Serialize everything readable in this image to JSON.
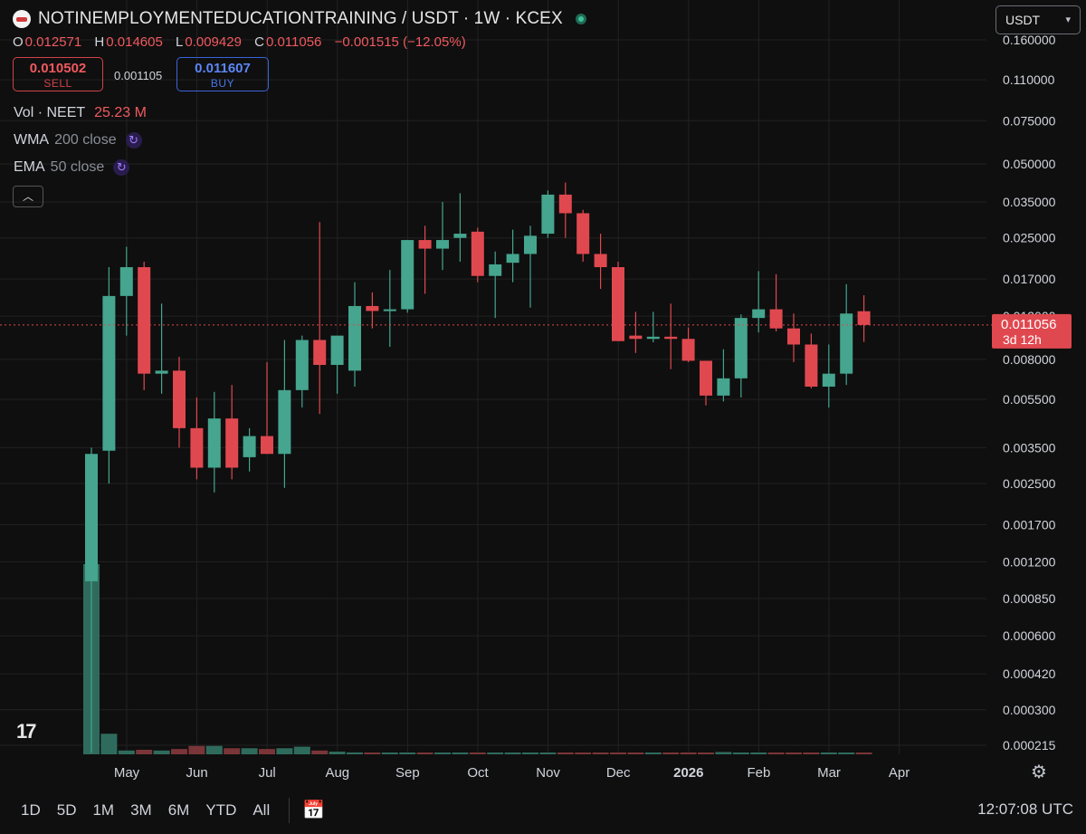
{
  "header": {
    "title": "NOTINEMPLOYMENTEDUCATIONTRAINING / USDT · 1W · KCEX",
    "currency_select": "USDT"
  },
  "ohlc": {
    "o_label": "O",
    "o": "0.012571",
    "h_label": "H",
    "h": "0.014605",
    "l_label": "L",
    "l": "0.009429",
    "c_label": "C",
    "c": "0.011056",
    "change": "−0.001515 (−12.05%)"
  },
  "trade": {
    "sell_price": "0.010502",
    "sell_label": "SELL",
    "spread": "0.001105",
    "buy_price": "0.011607",
    "buy_label": "BUY"
  },
  "indicators": {
    "vol": {
      "name": "Vol · NEET",
      "value": "25.23 M"
    },
    "wma": {
      "name": "WMA",
      "params": "200 close"
    },
    "ema": {
      "name": "EMA",
      "params": "50 close"
    }
  },
  "timeframes": [
    "1D",
    "5D",
    "1M",
    "3M",
    "6M",
    "YTD",
    "All"
  ],
  "clock": "12:07:08 UTC",
  "price_label": {
    "value": "0.011056",
    "countdown": "3d 12h"
  },
  "colors": {
    "up": "#45a58e",
    "down": "#e0484f",
    "background": "#0f0f0f",
    "grid": "#222222"
  },
  "icons": [
    "tradingview-logo-icon",
    "settings-icon",
    "calendar-range-icon",
    "chevron-down-icon",
    "chevron-up-icon"
  ],
  "chart_data": {
    "type": "candlestick",
    "scale": "log",
    "interval": "1W",
    "y_ticks": [
      0.16,
      0.11,
      0.075,
      0.05,
      0.035,
      0.025,
      0.017,
      0.012,
      0.008,
      0.0055,
      0.0035,
      0.0025,
      0.0017,
      0.0012,
      0.00085,
      0.0006,
      0.00042,
      0.0003,
      0.000215
    ],
    "x_ticks": [
      {
        "label": "May",
        "bold": false
      },
      {
        "label": "Jun",
        "bold": false
      },
      {
        "label": "Jul",
        "bold": false
      },
      {
        "label": "Aug",
        "bold": false
      },
      {
        "label": "Sep",
        "bold": false
      },
      {
        "label": "Oct",
        "bold": false
      },
      {
        "label": "Nov",
        "bold": false
      },
      {
        "label": "Dec",
        "bold": false
      },
      {
        "label": "2026",
        "bold": true
      },
      {
        "label": "Feb",
        "bold": false
      },
      {
        "label": "Mar",
        "bold": false
      },
      {
        "label": "Apr",
        "bold": false
      }
    ],
    "candles": [
      {
        "o": 0.001,
        "h": 0.0035,
        "l": 0.0002,
        "c": 0.0033
      },
      {
        "o": 0.0034,
        "h": 0.019,
        "l": 0.0025,
        "c": 0.0145
      },
      {
        "o": 0.0145,
        "h": 0.023,
        "l": 0.01,
        "c": 0.019
      },
      {
        "o": 0.019,
        "h": 0.02,
        "l": 0.006,
        "c": 0.007
      },
      {
        "o": 0.007,
        "h": 0.0135,
        "l": 0.0058,
        "c": 0.0072
      },
      {
        "o": 0.0072,
        "h": 0.0082,
        "l": 0.0035,
        "c": 0.0042
      },
      {
        "o": 0.0042,
        "h": 0.0056,
        "l": 0.0026,
        "c": 0.0029
      },
      {
        "o": 0.0029,
        "h": 0.0059,
        "l": 0.0023,
        "c": 0.0046
      },
      {
        "o": 0.0046,
        "h": 0.0063,
        "l": 0.0026,
        "c": 0.0029
      },
      {
        "o": 0.0032,
        "h": 0.0042,
        "l": 0.0028,
        "c": 0.0039
      },
      {
        "o": 0.0039,
        "h": 0.0078,
        "l": 0.0033,
        "c": 0.0033
      },
      {
        "o": 0.0033,
        "h": 0.0096,
        "l": 0.0024,
        "c": 0.006
      },
      {
        "o": 0.006,
        "h": 0.01,
        "l": 0.0051,
        "c": 0.0096
      },
      {
        "o": 0.0096,
        "h": 0.029,
        "l": 0.0048,
        "c": 0.0076
      },
      {
        "o": 0.0076,
        "h": 0.01,
        "l": 0.0058,
        "c": 0.01
      },
      {
        "o": 0.0072,
        "h": 0.0165,
        "l": 0.0062,
        "c": 0.0132
      },
      {
        "o": 0.0132,
        "h": 0.015,
        "l": 0.0107,
        "c": 0.0126
      },
      {
        "o": 0.0126,
        "h": 0.0185,
        "l": 0.009,
        "c": 0.0128
      },
      {
        "o": 0.0128,
        "h": 0.0245,
        "l": 0.0124,
        "c": 0.0245
      },
      {
        "o": 0.0245,
        "h": 0.028,
        "l": 0.0148,
        "c": 0.0226
      },
      {
        "o": 0.0226,
        "h": 0.035,
        "l": 0.0185,
        "c": 0.0245
      },
      {
        "o": 0.025,
        "h": 0.038,
        "l": 0.02,
        "c": 0.026
      },
      {
        "o": 0.0265,
        "h": 0.0275,
        "l": 0.0165,
        "c": 0.0175
      },
      {
        "o": 0.0175,
        "h": 0.022,
        "l": 0.0118,
        "c": 0.0195
      },
      {
        "o": 0.0198,
        "h": 0.027,
        "l": 0.0165,
        "c": 0.0215
      },
      {
        "o": 0.0215,
        "h": 0.028,
        "l": 0.013,
        "c": 0.0255
      },
      {
        "o": 0.026,
        "h": 0.039,
        "l": 0.025,
        "c": 0.0375
      },
      {
        "o": 0.0375,
        "h": 0.042,
        "l": 0.025,
        "c": 0.0315
      },
      {
        "o": 0.0315,
        "h": 0.0325,
        "l": 0.02,
        "c": 0.0215
      },
      {
        "o": 0.0215,
        "h": 0.026,
        "l": 0.0155,
        "c": 0.019
      },
      {
        "o": 0.019,
        "h": 0.02,
        "l": 0.0095,
        "c": 0.0095
      },
      {
        "o": 0.01,
        "h": 0.0125,
        "l": 0.0085,
        "c": 0.0097
      },
      {
        "o": 0.0097,
        "h": 0.0125,
        "l": 0.0094,
        "c": 0.0099
      },
      {
        "o": 0.0099,
        "h": 0.0135,
        "l": 0.0073,
        "c": 0.0097
      },
      {
        "o": 0.0097,
        "h": 0.0108,
        "l": 0.0078,
        "c": 0.0079
      },
      {
        "o": 0.0079,
        "h": 0.0079,
        "l": 0.0052,
        "c": 0.0057
      },
      {
        "o": 0.0057,
        "h": 0.0088,
        "l": 0.0054,
        "c": 0.0067
      },
      {
        "o": 0.0067,
        "h": 0.0122,
        "l": 0.0056,
        "c": 0.0118
      },
      {
        "o": 0.0118,
        "h": 0.0183,
        "l": 0.0103,
        "c": 0.0128
      },
      {
        "o": 0.0128,
        "h": 0.0178,
        "l": 0.0104,
        "c": 0.0107
      },
      {
        "o": 0.0107,
        "h": 0.0123,
        "l": 0.0078,
        "c": 0.0092
      },
      {
        "o": 0.0092,
        "h": 0.0102,
        "l": 0.0061,
        "c": 0.0062
      },
      {
        "o": 0.0062,
        "h": 0.0092,
        "l": 0.0051,
        "c": 0.007
      },
      {
        "o": 0.007,
        "h": 0.0162,
        "l": 0.0063,
        "c": 0.0123
      },
      {
        "o": 0.012571,
        "h": 0.014605,
        "l": 0.009429,
        "c": 0.011056
      }
    ],
    "volumes": [
      25.0,
      2.7,
      0.5,
      0.6,
      0.5,
      0.7,
      1.1,
      1.1,
      0.8,
      0.8,
      0.7,
      0.8,
      1.0,
      0.5,
      0.35,
      0.25,
      0.2,
      0.2,
      0.2,
      0.15,
      0.15,
      0.15,
      0.15,
      0.15,
      0.1,
      0.1,
      0.1,
      0.1,
      0.1,
      0.1,
      0.1,
      0.12,
      0.2,
      0.2,
      0.15,
      0.2,
      0.3,
      0.2,
      0.2,
      0.15,
      0.2,
      0.15,
      0.2,
      0.2,
      0.08
    ]
  }
}
